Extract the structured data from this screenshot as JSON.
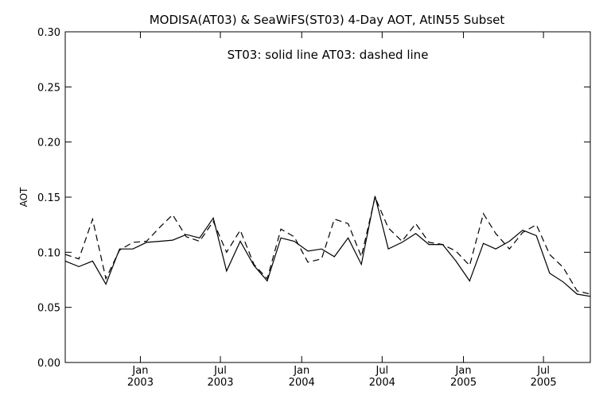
{
  "chart_data": {
    "type": "line",
    "title": "MODISA(AT03) & SeaWiFS(ST03) 4-Day AOT, AtIN55 Subset",
    "annotation": "ST03: solid line    AT03: dashed line",
    "ylabel": "AOT",
    "xlabel": "",
    "ylim": [
      0.0,
      0.3
    ],
    "yticks": [
      "0.00",
      "0.05",
      "0.10",
      "0.15",
      "0.20",
      "0.25",
      "0.30"
    ],
    "xlim": [
      "2002-07-15",
      "2005-10-15"
    ],
    "xticks": [
      {
        "date": "2003-01-01",
        "month": "Jan",
        "year": "2003"
      },
      {
        "date": "2003-07-01",
        "month": "Jul",
        "year": "2003"
      },
      {
        "date": "2004-01-01",
        "month": "Jan",
        "year": "2004"
      },
      {
        "date": "2004-07-01",
        "month": "Jul",
        "year": "2004"
      },
      {
        "date": "2005-01-01",
        "month": "Jan",
        "year": "2005"
      },
      {
        "date": "2005-07-01",
        "month": "Jul",
        "year": "2005"
      }
    ],
    "grid": false,
    "x": [
      "2002-07-15",
      "2002-08-15",
      "2002-09-15",
      "2002-10-15",
      "2002-11-15",
      "2002-12-15",
      "2003-01-15",
      "2003-02-15",
      "2003-03-15",
      "2003-04-15",
      "2003-05-15",
      "2003-06-15",
      "2003-07-15",
      "2003-08-15",
      "2003-09-15",
      "2003-10-15",
      "2003-11-15",
      "2003-12-15",
      "2004-01-15",
      "2004-02-15",
      "2004-03-15",
      "2004-04-15",
      "2004-05-15",
      "2004-06-15",
      "2004-07-15",
      "2004-08-15",
      "2004-09-15",
      "2004-10-15",
      "2004-11-15",
      "2004-12-15",
      "2005-01-15",
      "2005-02-15",
      "2005-03-15",
      "2005-04-15",
      "2005-05-15",
      "2005-06-15",
      "2005-07-15",
      "2005-08-15",
      "2005-09-15",
      "2005-10-15"
    ],
    "series": [
      {
        "name": "ST03",
        "style": "solid",
        "values": [
          0.092,
          0.087,
          0.092,
          0.071,
          0.103,
          0.103,
          0.109,
          0.11,
          0.111,
          0.116,
          0.113,
          0.131,
          0.083,
          0.11,
          0.088,
          0.074,
          0.113,
          0.11,
          0.101,
          0.103,
          0.096,
          0.113,
          0.089,
          0.151,
          0.103,
          0.109,
          0.117,
          0.107,
          0.107,
          0.092,
          0.074,
          0.108,
          0.103,
          0.11,
          0.12,
          0.115,
          0.081,
          0.073,
          0.062,
          0.06
        ]
      },
      {
        "name": "AT03",
        "style": "dashed",
        "values": [
          0.098,
          0.094,
          0.13,
          0.076,
          0.102,
          0.109,
          0.11,
          0.123,
          0.134,
          0.114,
          0.11,
          0.128,
          0.1,
          0.12,
          0.089,
          0.076,
          0.121,
          0.114,
          0.091,
          0.094,
          0.13,
          0.126,
          0.096,
          0.15,
          0.122,
          0.11,
          0.126,
          0.109,
          0.107,
          0.101,
          0.088,
          0.135,
          0.117,
          0.103,
          0.118,
          0.125,
          0.098,
          0.086,
          0.065,
          0.062
        ]
      }
    ]
  }
}
